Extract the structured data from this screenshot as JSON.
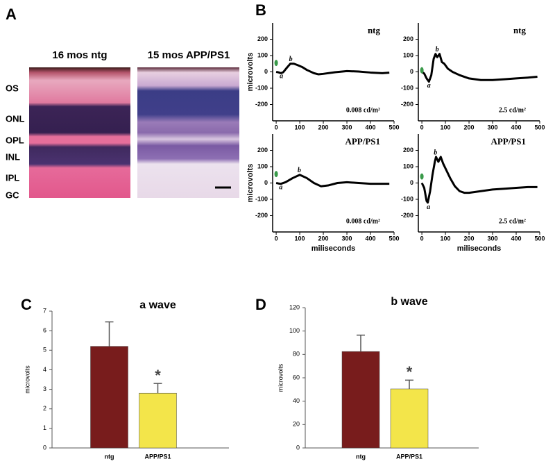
{
  "panel_labels": [
    "A",
    "B",
    "C",
    "D"
  ],
  "histology": {
    "titles": [
      "16 mos ntg",
      "15 mos APP/PS1"
    ],
    "layers": [
      "OS",
      "ONL",
      "OPL",
      "INL",
      "IPL",
      "GC"
    ]
  },
  "chart_data": [
    {
      "type": "line",
      "title": "ntg",
      "annotation": "0.008 cd/m²",
      "ylabel": "microvolts",
      "x": [
        0,
        10,
        20,
        30,
        45,
        60,
        75,
        90,
        110,
        130,
        160,
        180,
        200,
        250,
        300,
        350,
        400,
        450,
        480
      ],
      "series": [
        {
          "color": "#000000",
          "values": [
            0,
            -3,
            -8,
            -2,
            25,
            50,
            50,
            42,
            30,
            12,
            -8,
            -15,
            -12,
            -2,
            5,
            2,
            -4,
            -8,
            -5
          ]
        }
      ],
      "point_labels": [
        {
          "text": "a",
          "x": 22,
          "y": -28
        },
        {
          "text": "b",
          "x": 62,
          "y": 75
        }
      ],
      "stimulus": {
        "x": 0,
        "y": 55,
        "color": "#3a9a4a"
      },
      "xlim": [
        -15,
        500
      ],
      "ylim": [
        -300,
        300
      ],
      "xticks": [
        0,
        100,
        200,
        300,
        400,
        500
      ],
      "yticks": [
        200,
        100,
        0,
        -100,
        -200
      ]
    },
    {
      "type": "line",
      "title": "ntg",
      "annotation": "2.5 cd/m²",
      "x": [
        0,
        10,
        20,
        30,
        40,
        50,
        58,
        65,
        75,
        85,
        95,
        110,
        130,
        160,
        200,
        250,
        300,
        350,
        400,
        450,
        490
      ],
      "series": [
        {
          "color": "#000000",
          "values": [
            0,
            -10,
            -40,
            -60,
            -20,
            80,
            110,
            90,
            110,
            60,
            50,
            20,
            0,
            -20,
            -40,
            -50,
            -50,
            -45,
            -40,
            -35,
            -30
          ]
        }
      ],
      "point_labels": [
        {
          "text": "a",
          "x": 30,
          "y": -85
        },
        {
          "text": "b",
          "x": 65,
          "y": 135
        }
      ],
      "stimulus": {
        "x": 0,
        "y": 10,
        "color": "#3a9a4a"
      },
      "xlim": [
        -15,
        500
      ],
      "ylim": [
        -300,
        300
      ],
      "xticks": [
        0,
        100,
        200,
        300,
        400,
        500
      ],
      "yticks": [
        200,
        100,
        0,
        -100,
        -200
      ]
    },
    {
      "type": "line",
      "title": "APP/PS1",
      "annotation": "0.008 cd/m²",
      "ylabel": "microvolts",
      "xlabel": "miliseconds",
      "x": [
        0,
        10,
        20,
        40,
        70,
        100,
        130,
        160,
        190,
        220,
        260,
        300,
        350,
        400,
        450,
        480
      ],
      "series": [
        {
          "color": "#000000",
          "values": [
            0,
            -3,
            -5,
            5,
            30,
            50,
            30,
            0,
            -20,
            -15,
            0,
            5,
            0,
            -5,
            -5,
            -5
          ]
        }
      ],
      "point_labels": [
        {
          "text": "a",
          "x": 20,
          "y": -28
        },
        {
          "text": "b",
          "x": 98,
          "y": 75
        }
      ],
      "stimulus": {
        "x": 0,
        "y": 55,
        "color": "#3a9a4a"
      },
      "xlim": [
        -15,
        500
      ],
      "ylim": [
        -300,
        300
      ],
      "xticks": [
        0,
        100,
        200,
        300,
        400,
        500
      ],
      "yticks": [
        200,
        100,
        0,
        -100,
        -200
      ]
    },
    {
      "type": "line",
      "title": "APP/PS1",
      "annotation": "2.5 cd/m²",
      "xlabel": "miliseconds",
      "x": [
        0,
        10,
        20,
        25,
        35,
        45,
        55,
        60,
        70,
        80,
        90,
        100,
        120,
        140,
        160,
        180,
        200,
        250,
        300,
        350,
        400,
        450,
        490
      ],
      "series": [
        {
          "color": "#000000",
          "values": [
            0,
            -30,
            -110,
            -120,
            -50,
            50,
            130,
            160,
            130,
            160,
            120,
            90,
            30,
            -20,
            -50,
            -60,
            -60,
            -50,
            -40,
            -35,
            -30,
            -25,
            -25
          ]
        }
      ],
      "point_labels": [
        {
          "text": "a",
          "x": 28,
          "y": -150
        },
        {
          "text": "b",
          "x": 58,
          "y": 185
        }
      ],
      "stimulus": {
        "x": 0,
        "y": 40,
        "color": "#3a9a4a"
      },
      "xlim": [
        -15,
        500
      ],
      "ylim": [
        -300,
        300
      ],
      "xticks": [
        0,
        100,
        200,
        300,
        400,
        500
      ],
      "yticks": [
        200,
        100,
        0,
        -100,
        -200
      ]
    },
    {
      "type": "bar",
      "title": "a wave",
      "ylabel": "microvolts",
      "categories": [
        "ntg",
        "APP/PS1"
      ],
      "values": [
        5.2,
        2.8
      ],
      "errors": [
        1.25,
        0.5
      ],
      "colors": [
        "#781c1c",
        "#f3e54a"
      ],
      "annotations": [
        null,
        "*"
      ],
      "ylim": [
        0,
        7
      ],
      "yticks": [
        0,
        1,
        2,
        3,
        4,
        5,
        6,
        7
      ]
    },
    {
      "type": "bar",
      "title": "b wave",
      "ylabel": "microvolts",
      "categories": [
        "ntg",
        "APP/PS1"
      ],
      "values": [
        82.5,
        50.5
      ],
      "errors": [
        14,
        7.5
      ],
      "colors": [
        "#781c1c",
        "#f3e54a"
      ],
      "annotations": [
        null,
        "*"
      ],
      "ylim": [
        0,
        120
      ],
      "yticks": [
        0,
        20,
        40,
        60,
        80,
        100,
        120
      ]
    }
  ]
}
